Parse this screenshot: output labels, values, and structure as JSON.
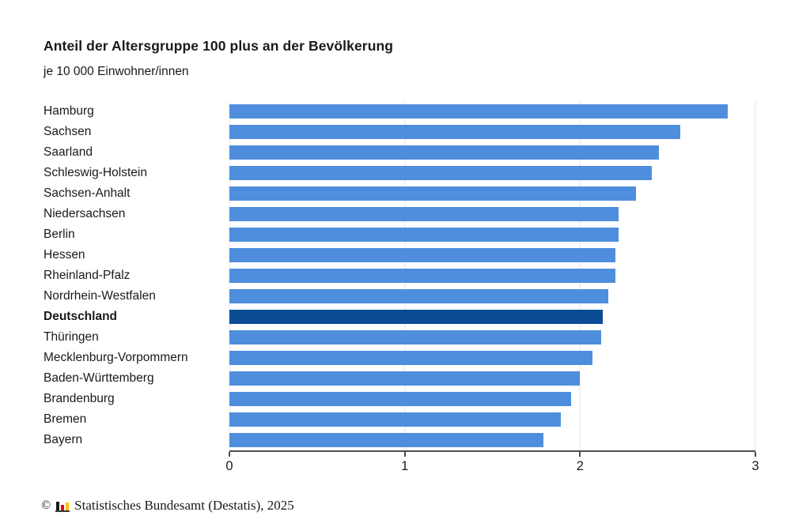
{
  "header": {
    "title": "Anteil der Altersgruppe 100 plus an der Bevölkerung",
    "subtitle": "je 10 000 Einwohner/innen"
  },
  "chart_data": {
    "type": "bar",
    "orientation": "horizontal",
    "title": "Anteil der Altersgruppe 100 plus an der Bevölkerung",
    "subtitle": "je 10 000 Einwohner/innen",
    "categories": [
      "Hamburg",
      "Sachsen",
      "Saarland",
      "Schleswig-Holstein",
      "Sachsen-Anhalt",
      "Niedersachsen",
      "Berlin",
      "Hessen",
      "Rheinland-Pfalz",
      "Nordrhein-Westfalen",
      "Deutschland",
      "Thüringen",
      "Mecklenburg-Vorpommern",
      "Baden-Württemberg",
      "Brandenburg",
      "Bremen",
      "Bayern"
    ],
    "values": [
      2.84,
      2.57,
      2.45,
      2.41,
      2.32,
      2.22,
      2.22,
      2.2,
      2.2,
      2.16,
      2.13,
      2.12,
      2.07,
      2.0,
      1.95,
      1.89,
      1.79
    ],
    "highlight_category": "Deutschland",
    "xlabel": "",
    "ylabel": "",
    "xlim": [
      0,
      3
    ],
    "x_ticks": [
      0,
      1,
      2,
      3
    ],
    "grid": true,
    "legend_position": "none",
    "colors": {
      "bar": "#4f8edd",
      "bar_highlight": "#0c4c96",
      "axis": "#4d4d4d",
      "gridline": "#e4e4e4",
      "text": "#1a1a1a"
    }
  },
  "footer": {
    "copyright": "©",
    "source": "Statistisches Bundesamt (Destatis), 2025",
    "logo": {
      "colors": [
        "#1a1a1a",
        "#e30613",
        "#f6c500"
      ]
    }
  }
}
